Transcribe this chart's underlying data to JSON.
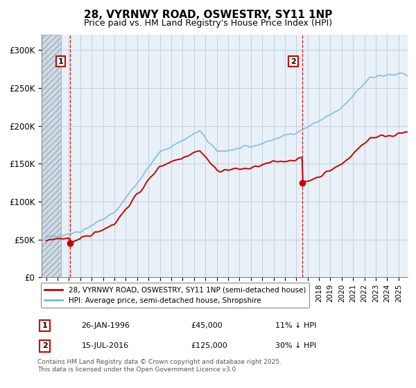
{
  "title": "28, VYRNWY ROAD, OSWESTRY, SY11 1NP",
  "subtitle": "Price paid vs. HM Land Registry's House Price Index (HPI)",
  "ylim": [
    0,
    320000
  ],
  "yticks": [
    0,
    50000,
    100000,
    150000,
    200000,
    250000,
    300000
  ],
  "ytick_labels": [
    "£0",
    "£50K",
    "£100K",
    "£150K",
    "£200K",
    "£250K",
    "£300K"
  ],
  "xlim_start": 1993.6,
  "xlim_end": 2025.8,
  "hpi_color": "#7ab8d8",
  "price_color": "#cc0000",
  "dashed_color": "#cc0000",
  "hatch_end": 1995.3,
  "purchase1_x": 1996.07,
  "purchase1_y": 45000,
  "purchase1_label": "1",
  "purchase2_x": 2016.54,
  "purchase2_y": 125000,
  "purchase2_label": "2",
  "legend_price_label": "28, VYRNWY ROAD, OSWESTRY, SY11 1NP (semi-detached house)",
  "legend_hpi_label": "HPI: Average price, semi-detached house, Shropshire",
  "annotation1_date": "26-JAN-1996",
  "annotation1_price": "£45,000",
  "annotation1_hpi": "11% ↓ HPI",
  "annotation2_date": "15-JUL-2016",
  "annotation2_price": "£125,000",
  "annotation2_hpi": "30% ↓ HPI",
  "footnote": "Contains HM Land Registry data © Crown copyright and database right 2025.\nThis data is licensed under the Open Government Licence v3.0.",
  "title_fontsize": 11,
  "subtitle_fontsize": 9,
  "background_color": "#e8f0f8"
}
